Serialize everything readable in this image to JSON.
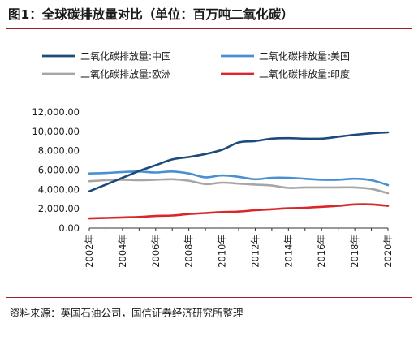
{
  "header": {
    "title": "图1：全球碳排放量对比（单位：百万吨二氧化碳）"
  },
  "footer": {
    "source": "资料来源：英国石油公司，国信证券经济研究所整理"
  },
  "chart_data": {
    "type": "line",
    "title": "",
    "xlabel": "",
    "ylabel": "",
    "x": [
      2002,
      2003,
      2004,
      2005,
      2006,
      2007,
      2008,
      2009,
      2010,
      2011,
      2012,
      2013,
      2014,
      2015,
      2016,
      2017,
      2018,
      2019,
      2020
    ],
    "x_tick_labels": [
      "2002年",
      "2004年",
      "2006年",
      "2008年",
      "2010年",
      "2012年",
      "2014年",
      "2016年",
      "2018年",
      "2020年"
    ],
    "x_tick_values": [
      2002,
      2004,
      2006,
      2008,
      2010,
      2012,
      2014,
      2016,
      2018,
      2020
    ],
    "xlim": [
      2002,
      2020
    ],
    "ylim": [
      0,
      12000
    ],
    "y_ticks": [
      0,
      2000,
      4000,
      6000,
      8000,
      10000,
      12000
    ],
    "y_tick_labels": [
      "0.00",
      "2,000.00",
      "4,000.00",
      "6,000.00",
      "8,000.00",
      "10,000.00",
      "12,000.00"
    ],
    "grid": false,
    "legend_position": "top",
    "series": [
      {
        "name": "二氧化碳排放量:中国",
        "color": "#1c4a7c",
        "values": [
          3800,
          4500,
          5200,
          5900,
          6500,
          7100,
          7350,
          7650,
          8100,
          8850,
          9000,
          9250,
          9300,
          9250,
          9250,
          9450,
          9650,
          9800,
          9900
        ]
      },
      {
        "name": "二氧化碳排放量:美国",
        "color": "#4a8fd1",
        "values": [
          5650,
          5700,
          5800,
          5850,
          5750,
          5850,
          5650,
          5250,
          5450,
          5300,
          5050,
          5200,
          5200,
          5100,
          5000,
          5000,
          5100,
          4950,
          4450
        ]
      },
      {
        "name": "二氧化碳排放量:欧洲",
        "color": "#a6a6a6",
        "values": [
          4850,
          4950,
          5000,
          4950,
          5000,
          5050,
          4900,
          4550,
          4700,
          4600,
          4500,
          4400,
          4150,
          4200,
          4200,
          4200,
          4200,
          4050,
          3600
        ]
      },
      {
        "name": "二氧化碳排放量:印度",
        "color": "#d9262a",
        "values": [
          1000,
          1050,
          1100,
          1150,
          1250,
          1300,
          1450,
          1550,
          1650,
          1700,
          1850,
          1950,
          2050,
          2100,
          2200,
          2300,
          2450,
          2450,
          2300
        ]
      }
    ]
  }
}
